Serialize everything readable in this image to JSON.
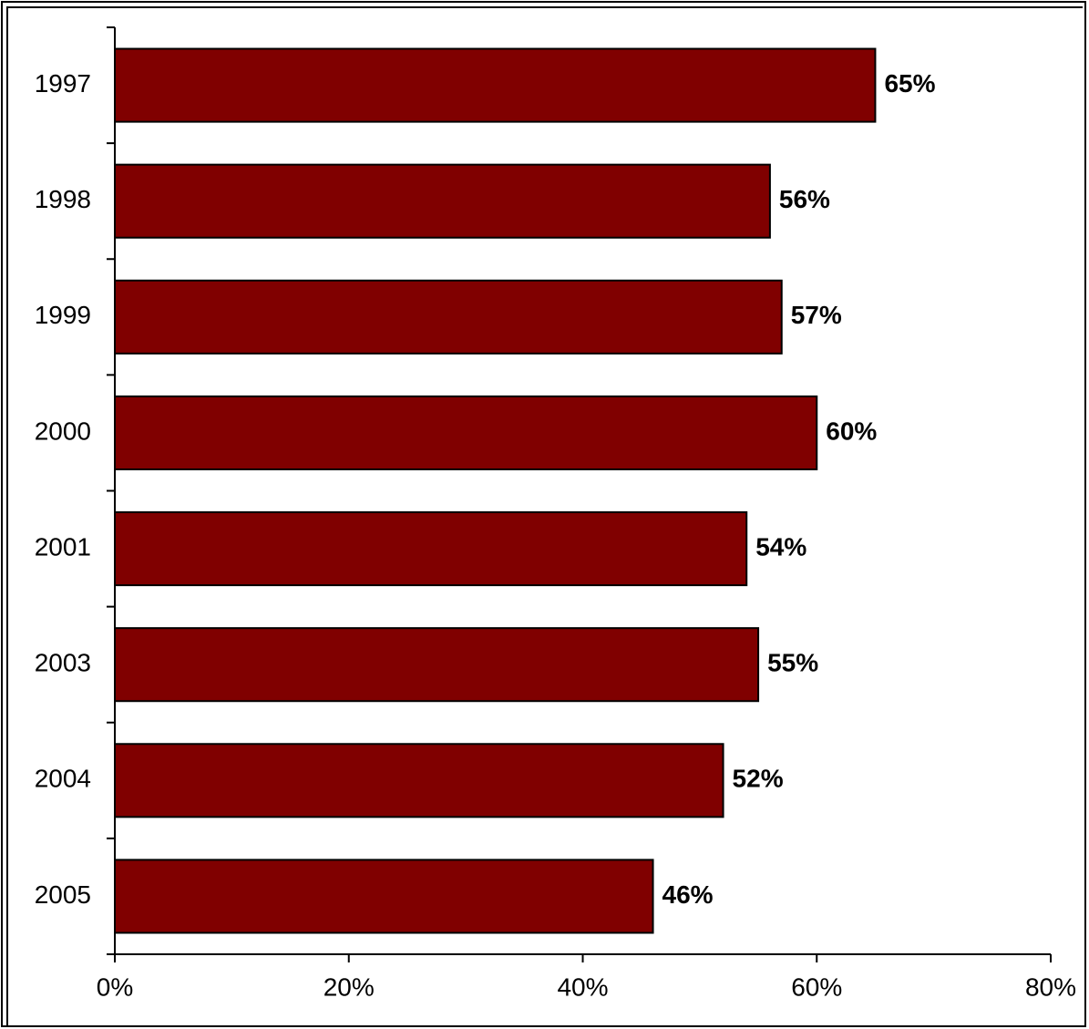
{
  "chart_data": {
    "type": "bar",
    "orientation": "horizontal",
    "categories": [
      "1997",
      "1998",
      "1999",
      "2000",
      "2001",
      "2003",
      "2004",
      "2005"
    ],
    "values": [
      65,
      56,
      57,
      60,
      54,
      55,
      52,
      46
    ],
    "data_labels": [
      "65%",
      "56%",
      "57%",
      "60%",
      "54%",
      "55%",
      "52%",
      "46%"
    ],
    "xlim": [
      0,
      80
    ],
    "x_ticks": [
      0,
      20,
      40,
      60,
      80
    ],
    "x_tick_labels": [
      "0%",
      "20%",
      "40%",
      "60%",
      "80%"
    ],
    "title": "",
    "xlabel": "",
    "ylabel": "",
    "grid": false,
    "bar_color": "#800000"
  }
}
